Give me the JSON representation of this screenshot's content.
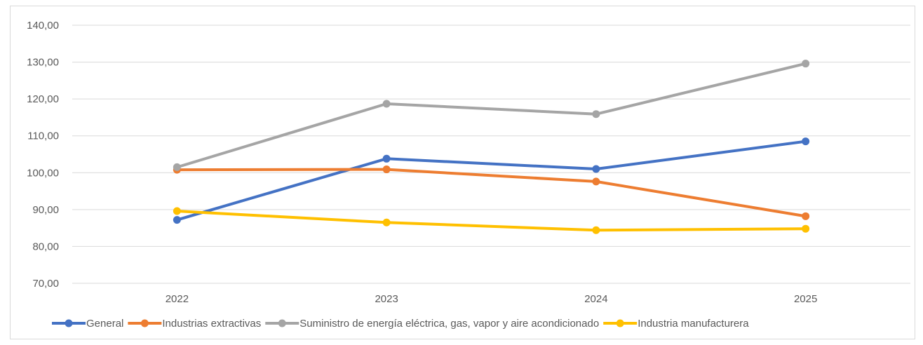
{
  "chart_data": {
    "type": "line",
    "title": "",
    "xlabel": "",
    "ylabel": "",
    "categories": [
      "2022",
      "2023",
      "2024",
      "2025"
    ],
    "ylim": [
      70,
      140
    ],
    "ystep": 10,
    "ytick_labels": [
      "70,00",
      "80,00",
      "90,00",
      "100,00",
      "110,00",
      "120,00",
      "130,00",
      "140,00"
    ],
    "grid": true,
    "legend_position": "bottom",
    "series": [
      {
        "name": "General",
        "color": "#4472C4",
        "values": [
          87.2,
          103.8,
          101.0,
          108.5
        ]
      },
      {
        "name": "Industrias extractivas",
        "color": "#ED7D31",
        "values": [
          100.8,
          100.9,
          97.6,
          88.2
        ]
      },
      {
        "name": "Suministro de energía eléctrica, gas, vapor y aire acondicionado",
        "color": "#A5A5A5",
        "values": [
          101.5,
          118.7,
          115.9,
          129.6
        ]
      },
      {
        "name": "Industria manufacturera",
        "color": "#FFC000",
        "values": [
          89.6,
          86.5,
          84.4,
          84.8
        ]
      }
    ]
  }
}
